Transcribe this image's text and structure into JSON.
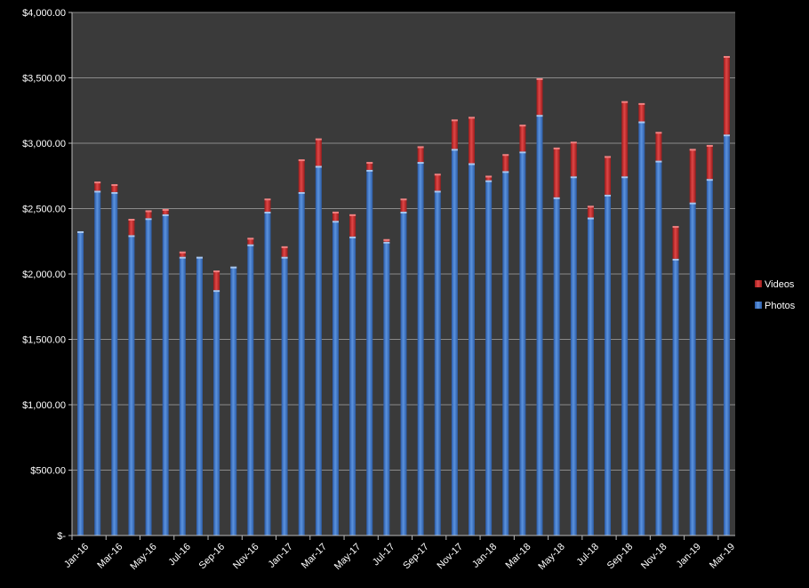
{
  "chart_data": {
    "type": "bar",
    "stacked": true,
    "grid": true,
    "legend_position": "right",
    "ylim": [
      0,
      4000
    ],
    "y_ticks": [
      {
        "value": 0,
        "label": "$-"
      },
      {
        "value": 500,
        "label": "$500.00"
      },
      {
        "value": 1000,
        "label": "$1,000.00"
      },
      {
        "value": 1500,
        "label": "$1,500.00"
      },
      {
        "value": 2000,
        "label": "$2,000.00"
      },
      {
        "value": 2500,
        "label": "$2,500.00"
      },
      {
        "value": 3000,
        "label": "$3,000.00"
      },
      {
        "value": 3500,
        "label": "$3,500.00"
      },
      {
        "value": 4000,
        "label": "$4,000.00"
      }
    ],
    "categories": [
      "Jan-16",
      "Feb-16",
      "Mar-16",
      "Apr-16",
      "May-16",
      "Jun-16",
      "Jul-16",
      "Aug-16",
      "Sep-16",
      "Oct-16",
      "Nov-16",
      "Dec-16",
      "Jan-17",
      "Feb-17",
      "Mar-17",
      "Apr-17",
      "May-17",
      "Jun-17",
      "Jul-17",
      "Aug-17",
      "Sep-17",
      "Oct-17",
      "Nov-17",
      "Dec-17",
      "Jan-18",
      "Feb-18",
      "Mar-18",
      "Apr-18",
      "May-18",
      "Jun-18",
      "Jul-18",
      "Aug-18",
      "Sep-18",
      "Oct-18",
      "Nov-18",
      "Dec-18",
      "Jan-19",
      "Feb-19",
      "Mar-19"
    ],
    "x_tick_labels": [
      "Jan-16",
      "Mar-16",
      "May-16",
      "Jul-16",
      "Sep-16",
      "Nov-16",
      "Jan-17",
      "Mar-17",
      "May-17",
      "Jul-17",
      "Sep-17",
      "Nov-17",
      "Jan-18",
      "Mar-18",
      "May-18",
      "Jul-18",
      "Sep-18",
      "Nov-18",
      "Jan-19",
      "Mar-19"
    ],
    "series": [
      {
        "name": "Photos",
        "color": "#3f78c8",
        "values": [
          2320,
          2630,
          2620,
          2290,
          2420,
          2450,
          2125,
          2125,
          1870,
          2050,
          2220,
          2470,
          2125,
          2620,
          2820,
          2400,
          2280,
          2790,
          2240,
          2470,
          2850,
          2630,
          2950,
          2840,
          2710,
          2780,
          2930,
          3210,
          2580,
          2740,
          2425,
          2600,
          2740,
          3160,
          2860,
          2110,
          2540,
          2720,
          3060
        ]
      },
      {
        "name": "Videos",
        "color": "#c22a2a",
        "values": [
          0,
          70,
          60,
          125,
          60,
          40,
          40,
          0,
          150,
          0,
          50,
          100,
          80,
          250,
          210,
          70,
          170,
          60,
          20,
          100,
          120,
          130,
          225,
          355,
          35,
          130,
          205,
          280,
          380,
          265,
          90,
          295,
          575,
          140,
          220,
          250,
          410,
          260,
          600
        ]
      }
    ]
  }
}
